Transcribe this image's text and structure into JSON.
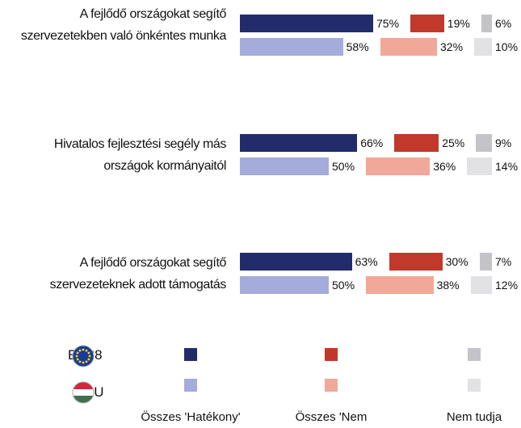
{
  "chart_data": {
    "type": "bar",
    "orientation": "horizontal",
    "stacking": "sequential",
    "categories": [
      "A fejlődő országokat segítő szervezetekben való önkéntes munka",
      "Hivatalos fejlesztési segély más országok kormányaitól",
      "A fejlődő országokat segítő szervezeteknek adott támogatás"
    ],
    "groups": [
      "EU28",
      "HU"
    ],
    "series": [
      {
        "name": "Összes 'Hatékony'",
        "colors": [
          "#232c6b",
          "#a4acdb"
        ],
        "values": [
          [
            75,
            58
          ],
          [
            66,
            50
          ],
          [
            63,
            50
          ]
        ],
        "value_labels": [
          [
            "75%",
            "58%"
          ],
          [
            "66%",
            "50%"
          ],
          [
            "63%",
            "50%"
          ]
        ]
      },
      {
        "name": "Összes 'Nem",
        "colors": [
          "#c0392b",
          "#f2a898"
        ],
        "values": [
          [
            19,
            32
          ],
          [
            25,
            36
          ],
          [
            30,
            38
          ]
        ],
        "value_labels": [
          [
            "19%",
            "32%"
          ],
          [
            "25%",
            "36%"
          ],
          [
            "30%",
            "38%"
          ]
        ]
      },
      {
        "name": "Nem tudja",
        "colors": [
          "#c4c4c8",
          "#e2e2e5"
        ],
        "values": [
          [
            6,
            10
          ],
          [
            9,
            14
          ],
          [
            7,
            12
          ]
        ],
        "value_labels": [
          [
            "6%",
            "10%"
          ],
          [
            "9%",
            "14%"
          ],
          [
            "7%",
            "12%"
          ]
        ]
      }
    ]
  }
}
